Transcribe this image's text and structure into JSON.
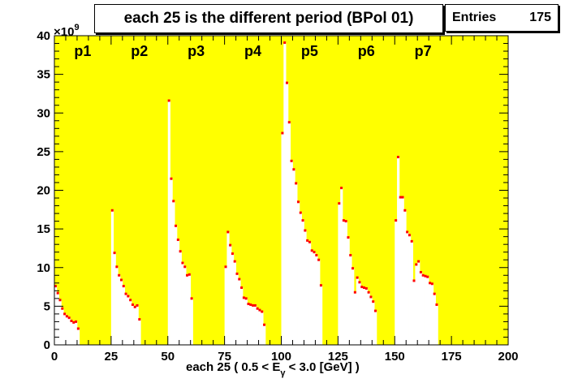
{
  "title": "each 25 is the different period (BPol 01)",
  "stats": {
    "label": "Entries",
    "value": "175"
  },
  "chart_data": {
    "type": "scatter",
    "title": "each 25 is the different period (BPol 01)",
    "xlabel_parts": {
      "pre": "each 25 ( 0.5 < E",
      "sub": "γ",
      "post": " < 3.0 [GeV] )"
    },
    "ylabel": "",
    "y_multiplier": {
      "base": "×10",
      "exp": "9"
    },
    "xlim": [
      0,
      200
    ],
    "ylim": [
      0,
      40
    ],
    "x_ticks": [
      0,
      25,
      50,
      75,
      100,
      125,
      150,
      175,
      200
    ],
    "y_ticks": [
      0,
      5,
      10,
      15,
      20,
      25,
      30,
      35,
      40
    ],
    "background_color": "#ffff00",
    "marker_color": "#ff0000",
    "periods": [
      {
        "name": "p1",
        "start": 0,
        "values": [
          7.6,
          6.7,
          5.8,
          4.7,
          4.0,
          3.7,
          3.5,
          3.1,
          2.9,
          3.0,
          2.1
        ]
      },
      {
        "name": "p2",
        "start": 25,
        "values": [
          17.4,
          11.9,
          10.1,
          9.0,
          8.4,
          7.6,
          6.6,
          6.3,
          5.8,
          5.2,
          4.9,
          5.1,
          3.3
        ]
      },
      {
        "name": "p3",
        "start": 50,
        "values": [
          31.6,
          21.5,
          18.6,
          15.4,
          13.6,
          12.1,
          10.6,
          10.1,
          9.0,
          9.1,
          6.0
        ]
      },
      {
        "name": "p4",
        "start": 75,
        "values": [
          10.1,
          14.6,
          12.9,
          11.8,
          10.8,
          9.2,
          8.5,
          7.4,
          6.1,
          6.0,
          5.3,
          5.2,
          5.1,
          5.1,
          4.7,
          4.5,
          4.3,
          2.6
        ]
      },
      {
        "name": "p5",
        "start": 100,
        "values": [
          27.4,
          39.1,
          33.9,
          28.8,
          23.8,
          22.7,
          20.9,
          18.5,
          17.1,
          16.1,
          14.8,
          13.5,
          13.3,
          12.2,
          12.0,
          11.6,
          11.0,
          7.7
        ]
      },
      {
        "name": "p6",
        "start": 125,
        "values": [
          18.3,
          20.3,
          16.1,
          16.0,
          13.9,
          11.6,
          9.9,
          6.8,
          8.7,
          8.1,
          7.5,
          7.4,
          7.3,
          6.8,
          6.2,
          5.6,
          4.4
        ]
      },
      {
        "name": "p7",
        "start": 150,
        "values": [
          16.1,
          24.3,
          19.1,
          19.1,
          17.4,
          14.6,
          14.2,
          13.4,
          8.3,
          10.4,
          10.8,
          9.4,
          9.0,
          8.9,
          8.8,
          8.0,
          7.9,
          6.6,
          5.2
        ]
      }
    ]
  }
}
